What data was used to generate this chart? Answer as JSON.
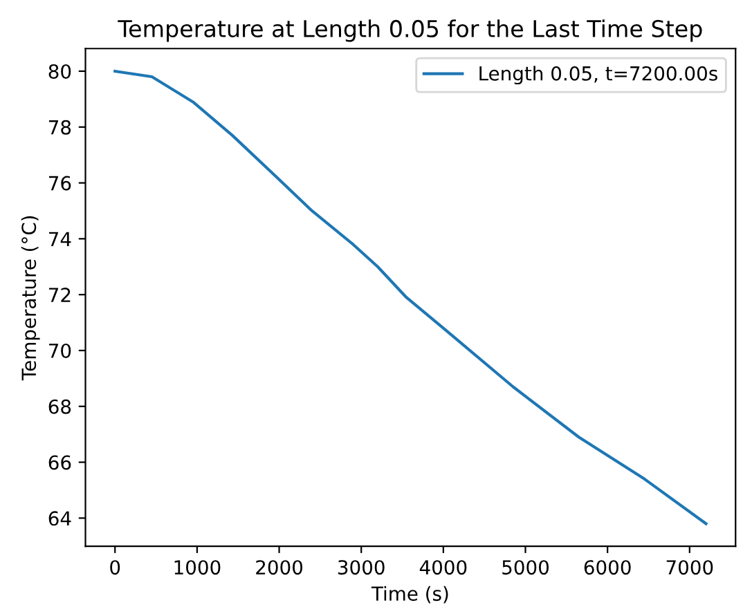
{
  "chart_data": {
    "type": "line",
    "title": "Temperature at Length 0.05 for the Last Time Step",
    "xlabel": "Time (s)",
    "ylabel": "Temperature (°C)",
    "x": [
      0,
      450,
      950,
      1430,
      1900,
      2400,
      2900,
      3200,
      3550,
      4000,
      4850,
      5650,
      6450,
      7200
    ],
    "series": [
      {
        "name": "Length 0.05, t=7200.00s",
        "color": "#1f77b4",
        "values": [
          80.0,
          79.8,
          78.9,
          77.7,
          76.4,
          75.0,
          73.8,
          73.0,
          71.9,
          70.8,
          68.7,
          66.9,
          65.4,
          63.8
        ]
      }
    ],
    "xlim": [
      -360,
      7560
    ],
    "ylim": [
      62.99,
      80.81
    ],
    "xticks": [
      0,
      1000,
      2000,
      3000,
      4000,
      5000,
      6000,
      7000
    ],
    "yticks": [
      64,
      66,
      68,
      70,
      72,
      74,
      76,
      78,
      80
    ],
    "legend": "top right",
    "grid": false
  }
}
